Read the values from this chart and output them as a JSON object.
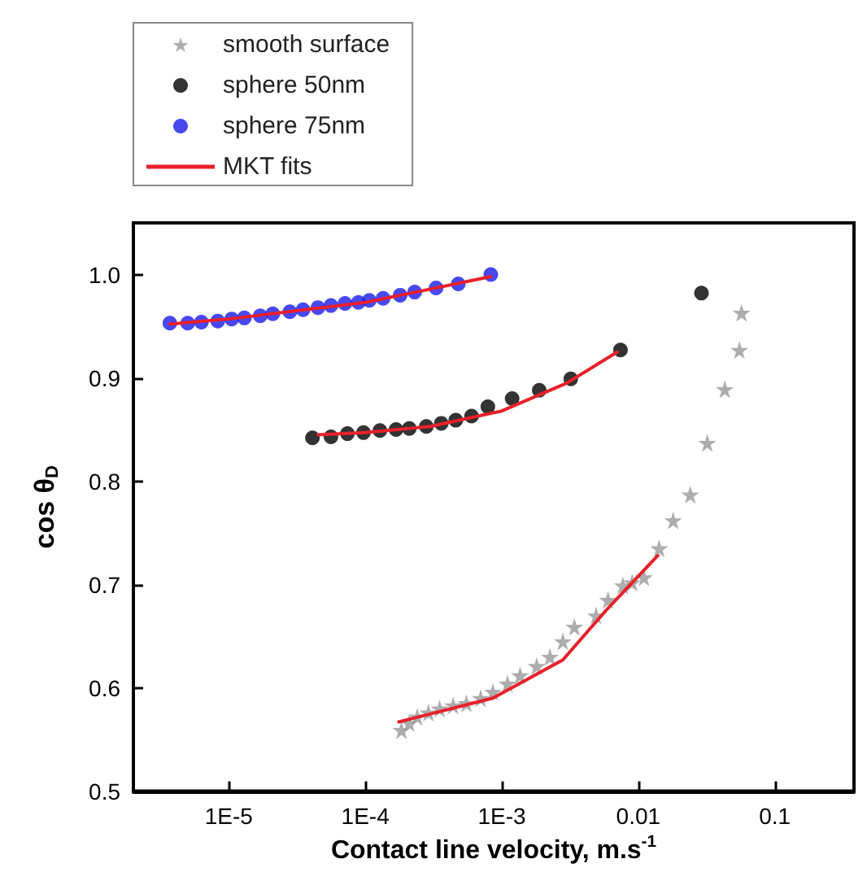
{
  "chart_data": {
    "type": "scatter",
    "xlabel": "Contact line velocity, m.s$^{-1}$",
    "ylabel": "cos θ$_{D}$",
    "log": "x",
    "xlim": [
      2e-06,
      0.38
    ],
    "xticks": [
      {
        "value": 1e-05,
        "label": "1E-5"
      },
      {
        "value": 0.0001,
        "label": "1E-4"
      },
      {
        "value": 0.001,
        "label": "1E-3"
      },
      {
        "value": 0.01,
        "label": "0.01"
      },
      {
        "value": 0.1,
        "label": "0.1"
      }
    ],
    "ylim": [
      0.5,
      1.05
    ],
    "yticks": [
      0.5,
      0.6,
      0.7,
      0.8,
      0.9,
      {
        "value": 1.0,
        "label": "1.0"
      }
    ],
    "grid": false,
    "legend": "top left",
    "series": [
      {
        "name": "smooth surface",
        "marker": "star",
        "color": "#999999",
        "x": [
          0.000184,
          0.00021,
          0.00024,
          0.00029,
          0.00035,
          0.00044,
          0.00055,
          0.0007,
          0.00086,
          0.0011,
          0.00136,
          0.0018,
          0.00225,
          0.0028,
          0.0034,
          0.0049,
          0.006,
          0.0077,
          0.009,
          0.011,
          0.0142,
          0.018,
          0.024,
          0.032,
          0.043,
          0.055,
          0.057
        ],
        "values": [
          0.559,
          0.566,
          0.572,
          0.576,
          0.58,
          0.583,
          0.585,
          0.59,
          0.596,
          0.604,
          0.612,
          0.621,
          0.63,
          0.645,
          0.659,
          0.67,
          0.685,
          0.699,
          0.702,
          0.707,
          0.735,
          0.762,
          0.787,
          0.837,
          0.889,
          0.927,
          0.963
        ]
      },
      {
        "name": "sphere 50nm",
        "marker": "circle",
        "color": "#000000",
        "x": [
          4.1e-05,
          5.6e-05,
          7.4e-05,
          9.7e-05,
          0.000128,
          0.000168,
          0.00021,
          0.00028,
          0.00036,
          0.00046,
          0.0006,
          0.00079,
          0.00119,
          0.00188,
          0.0032,
          0.0074,
          0.029
        ],
        "values": [
          0.842,
          0.843,
          0.846,
          0.847,
          0.849,
          0.85,
          0.851,
          0.853,
          0.856,
          0.859,
          0.863,
          0.872,
          0.88,
          0.888,
          0.899,
          0.927,
          0.982
        ]
      },
      {
        "name": "sphere 75nm",
        "marker": "circle",
        "color": "#1a1aee",
        "x": [
          3.7e-06,
          5e-06,
          6.3e-06,
          8.3e-06,
          1.05e-05,
          1.3e-05,
          1.7e-05,
          2.1e-05,
          2.8e-05,
          3.5e-05,
          4.5e-05,
          5.6e-05,
          7.1e-05,
          8.9e-05,
          0.000107,
          0.000135,
          0.00018,
          0.00023,
          0.00033,
          0.00048,
          0.00083
        ],
        "values": [
          0.953,
          0.953,
          0.954,
          0.955,
          0.957,
          0.958,
          0.96,
          0.962,
          0.964,
          0.966,
          0.968,
          0.97,
          0.972,
          0.973,
          0.975,
          0.977,
          0.98,
          0.983,
          0.987,
          0.991,
          1.0
        ]
      },
      {
        "name": "MKT fits",
        "type": "line",
        "marker": "none",
        "line_style": "solid",
        "color": "#e8202a",
        "x": [
          0.000176,
          0.00086,
          0.0028,
          0.0058,
          0.0139
        ],
        "values": [
          0.567,
          0.59,
          0.627,
          0.675,
          0.728
        ]
      },
      {
        "type": "line",
        "marker": "none",
        "line_style": "solid",
        "color": "#e8202a",
        "x": [
          4.5e-05,
          0.0001,
          0.0003,
          0.001,
          0.003,
          0.007
        ],
        "values": [
          0.845,
          0.847,
          0.853,
          0.868,
          0.895,
          0.925
        ]
      },
      {
        "type": "line",
        "marker": "none",
        "line_style": "solid",
        "color": "#e8202a",
        "x": [
          3.7e-06,
          1e-05,
          0.0001,
          0.00083
        ],
        "values": [
          0.952,
          0.957,
          0.973,
          0.998
        ]
      }
    ]
  }
}
